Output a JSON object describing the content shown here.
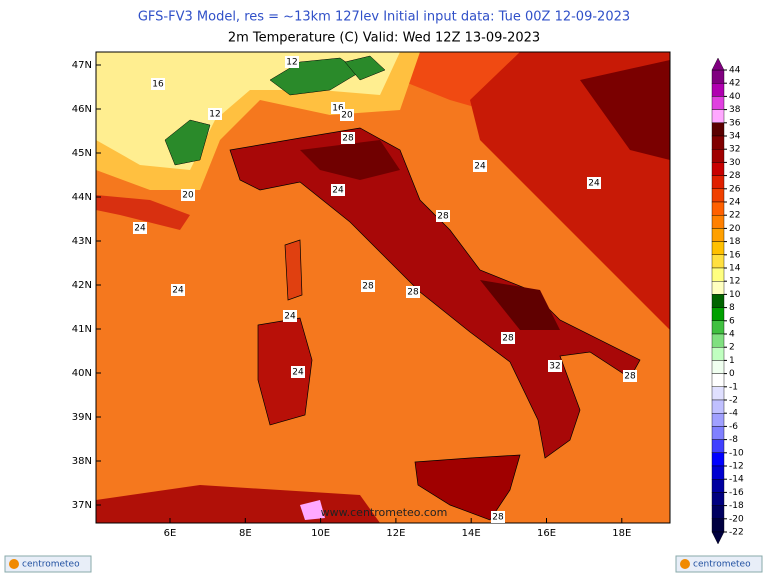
{
  "title": "GFS-FV3 Model, res = ~13km 127lev   Initial input data: Tue 00Z 12-09-2023",
  "subtitle": "2m Temperature (C)  Valid: Wed 12Z 13-09-2023",
  "lon_labels": [
    "6E",
    "8E",
    "10E",
    "12E",
    "14E",
    "16E",
    "18E"
  ],
  "lat_labels": [
    "47N",
    "46N",
    "45N",
    "44N",
    "43N",
    "42N",
    "41N",
    "40N",
    "39N",
    "38N",
    "37N"
  ],
  "colorbar": {
    "ticks": [
      44,
      42,
      40,
      38,
      36,
      34,
      32,
      30,
      28,
      26,
      24,
      22,
      20,
      18,
      16,
      14,
      12,
      10,
      8,
      6,
      4,
      2,
      1,
      0,
      -1,
      -2,
      -4,
      -6,
      -8,
      -10,
      -12,
      -14,
      -16,
      -18,
      -20,
      -22
    ],
    "colors": [
      "#800080",
      "#b000b0",
      "#e040e0",
      "#ffa8ff",
      "#5a0000",
      "#800000",
      "#a00000",
      "#c80000",
      "#e02000",
      "#f04000",
      "#ff6000",
      "#ff8000",
      "#ffa000",
      "#ffc000",
      "#ffe040",
      "#ffff80",
      "#ffffc0",
      "#006400",
      "#00a000",
      "#40c040",
      "#80e080",
      "#c0ffc0",
      "#f0fff0",
      "#ffffff",
      "#e0e0ff",
      "#c0c0ff",
      "#a0a0ff",
      "#8080ff",
      "#4040ff",
      "#0000ff",
      "#0000d0",
      "#0000a0",
      "#000080",
      "#000060",
      "#000040"
    ]
  },
  "contour_labels": [
    "12",
    "16",
    "12",
    "16",
    "20",
    "24",
    "28",
    "20",
    "24",
    "24",
    "24",
    "28",
    "24",
    "24",
    "24",
    "28",
    "28",
    "32",
    "28",
    "28",
    "28"
  ],
  "watermark": "www.centrometeo.com",
  "logo_left": "centrometeo",
  "logo_right": "centrometeo"
}
